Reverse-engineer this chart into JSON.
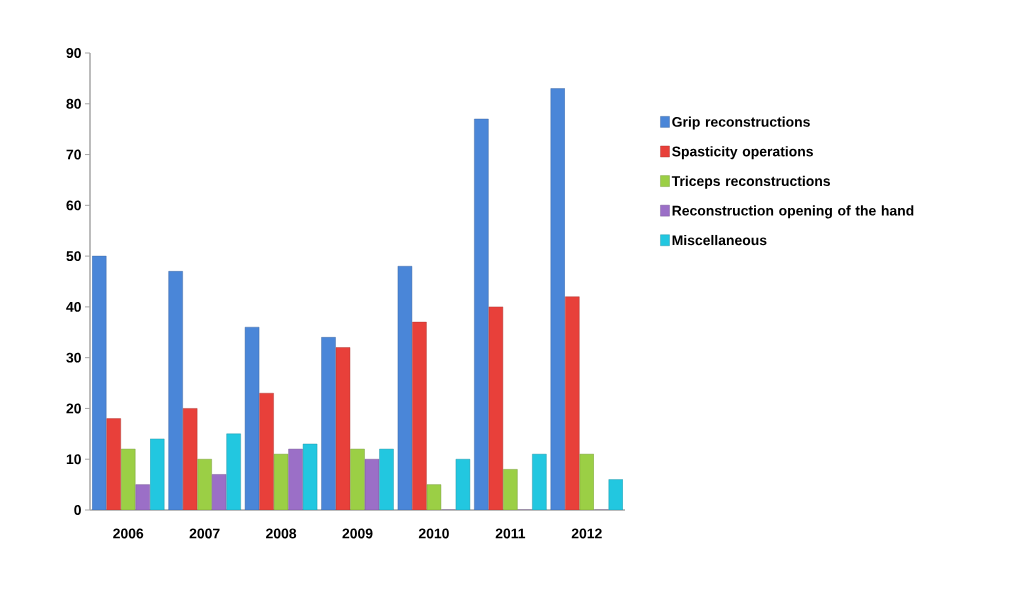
{
  "chart_data": {
    "type": "bar",
    "categories": [
      "2006",
      "2007",
      "2008",
      "2009",
      "2010",
      "2011",
      "2012"
    ],
    "series": [
      {
        "name": "Grip reconstructions",
        "color": "#4a86d8",
        "values": [
          50,
          47,
          36,
          34,
          48,
          77,
          83
        ]
      },
      {
        "name": "Spasticity operations",
        "color": "#e8403a",
        "values": [
          18,
          20,
          23,
          32,
          37,
          40,
          42
        ]
      },
      {
        "name": "Triceps reconstructions",
        "color": "#9bcf45",
        "values": [
          12,
          10,
          11,
          12,
          5,
          8,
          11
        ]
      },
      {
        "name": "Reconstruction opening of the hand",
        "color": "#9b6fc7",
        "values": [
          5,
          7,
          12,
          10,
          0,
          0,
          0
        ]
      },
      {
        "name": "Miscellaneous",
        "color": "#22c7e0",
        "values": [
          14,
          15,
          13,
          12,
          10,
          11,
          6
        ]
      }
    ],
    "ylim": [
      0,
      90
    ],
    "yticks": [
      0,
      10,
      20,
      30,
      40,
      50,
      60,
      70,
      80,
      90
    ],
    "legend": "right",
    "grid": false
  }
}
